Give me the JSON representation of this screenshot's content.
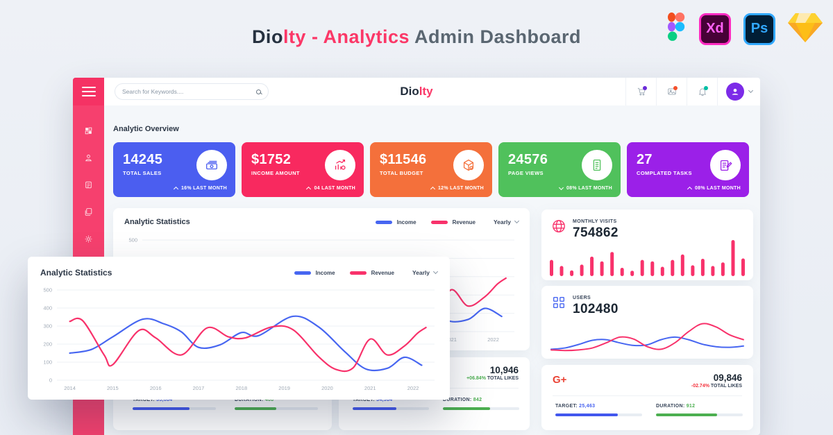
{
  "promo": {
    "title": {
      "part1": "Dio",
      "part2": "lty - ",
      "part3": "Analytics",
      "part4": " Admin Dashboard"
    },
    "tools": {
      "xd_label": "Xd",
      "ps_label": "Ps"
    }
  },
  "window": {
    "topbar": {
      "search_placeholder": "Search for Keywords....",
      "logo_part1": "Dio",
      "logo_part2": "lty"
    },
    "overview_heading": "Analytic Overview",
    "stat_cards": [
      {
        "value": "14245",
        "label": "TOTAL SALES",
        "change": "16% LAST MONTH",
        "direction": "up",
        "color": "#4b5ef0",
        "icon": "banknotes-icon"
      },
      {
        "value": "$1752",
        "label": "INCOME AMOUNT",
        "change": "04 LAST MONTH",
        "direction": "up",
        "color": "#f8295f",
        "icon": "growth-chart-icon"
      },
      {
        "value": "$11546",
        "label": "TOTAL BUDGET",
        "change": "12% LAST MONTH",
        "direction": "up",
        "color": "#f4703b",
        "icon": "package-icon"
      },
      {
        "value": "24576",
        "label": "PAGE VIEWS",
        "change": "08% LAST MONTH",
        "direction": "down",
        "color": "#50c15c",
        "icon": "report-icon"
      },
      {
        "value": "27",
        "label": "COMPLATED TASKS",
        "change": "08% LAST MONTH",
        "direction": "up",
        "color": "#9b20e8",
        "icon": "tasks-icon"
      }
    ],
    "statistics": {
      "title": "Analytic Statistics",
      "legend": [
        {
          "label": "Income",
          "color": "#4766f1"
        },
        {
          "label": "Revenue",
          "color": "#f8326b"
        }
      ],
      "range": "Yearly"
    },
    "right_panel": {
      "monthly_visits": {
        "label": "MONTHLY VISITS",
        "value": "754862"
      },
      "users": {
        "label": "USERS",
        "value": "102480"
      },
      "gplus": {
        "icon_text": "G+",
        "value": "09,846",
        "change": "-02.74%",
        "change_suffix": " TOTAL LIKES",
        "target_label": "TARGET: ",
        "target_value": "25,463",
        "target_pct": 72,
        "duration_label": "DURATION: ",
        "duration_value": "912",
        "duration_pct": 70
      }
    },
    "bottom_cards": [
      {
        "target_label": "TARGET: ",
        "target_value": "35,684",
        "target_pct": 68,
        "duration_label": "DURATION: ",
        "duration_value": "468",
        "duration_pct": 50
      },
      {
        "value": "10,946",
        "change": "+06.84%",
        "change_suffix": " TOTAL LIKES",
        "target_label": "TARGET: ",
        "target_value": "34,984",
        "target_pct": 57,
        "duration_label": "DURATION: ",
        "duration_value": "842",
        "duration_pct": 62
      }
    ]
  },
  "overlay": {
    "title": "Analytic Statistics",
    "range": "Yearly"
  },
  "chart_data": [
    {
      "id": "analytic-statistics",
      "type": "line",
      "title": "Analytic Statistics",
      "xlim": [
        2013.7,
        2022.5
      ],
      "ylim": [
        0,
        500
      ],
      "x_ticks": [
        2014,
        2015,
        2016,
        2017,
        2018,
        2019,
        2020,
        2021,
        2022
      ],
      "y_ticks": [
        0,
        100,
        200,
        300,
        400,
        500
      ],
      "grid": true,
      "legend_position": "top-right",
      "series": [
        {
          "name": "Income",
          "color": "#4766f1",
          "points": [
            [
              2014,
              150
            ],
            [
              2014.5,
              170
            ],
            [
              2015,
              240
            ],
            [
              2015.7,
              338
            ],
            [
              2016.2,
              312
            ],
            [
              2016.6,
              268
            ],
            [
              2017,
              182
            ],
            [
              2017.5,
              196
            ],
            [
              2018,
              264
            ],
            [
              2018.4,
              247
            ],
            [
              2019.2,
              354
            ],
            [
              2019.8,
              295
            ],
            [
              2020.4,
              160
            ],
            [
              2020.9,
              62
            ],
            [
              2021.4,
              66
            ],
            [
              2021.8,
              127
            ],
            [
              2022.2,
              83
            ]
          ]
        },
        {
          "name": "Revenue",
          "color": "#f8326b",
          "points": [
            [
              2014,
              326
            ],
            [
              2014.3,
              330
            ],
            [
              2014.8,
              140
            ],
            [
              2015,
              86
            ],
            [
              2015.6,
              274
            ],
            [
              2016,
              235
            ],
            [
              2016.6,
              140
            ],
            [
              2017.2,
              290
            ],
            [
              2017.7,
              240
            ],
            [
              2018.1,
              235
            ],
            [
              2018.7,
              295
            ],
            [
              2019.2,
              280
            ],
            [
              2019.8,
              130
            ],
            [
              2020.2,
              60
            ],
            [
              2020.6,
              68
            ],
            [
              2021,
              228
            ],
            [
              2021.4,
              140
            ],
            [
              2021.8,
              190
            ],
            [
              2022.1,
              260
            ],
            [
              2022.3,
              292
            ]
          ]
        }
      ]
    },
    {
      "id": "monthly-visits",
      "type": "bar",
      "color": "#f8326b",
      "values": [
        45,
        28,
        16,
        32,
        54,
        41,
        67,
        23,
        15,
        45,
        41,
        26,
        45,
        60,
        30,
        48,
        28,
        38,
        100,
        49
      ]
    },
    {
      "id": "users-activity",
      "type": "spark",
      "max": 100,
      "series": [
        {
          "name": "users-blue",
          "color": "#4766f1",
          "values": [
            10,
            14,
            25,
            38,
            40,
            30,
            22,
            24,
            40,
            48,
            40,
            26,
            18,
            16,
            20
          ]
        },
        {
          "name": "users-pink",
          "color": "#f8326b",
          "values": [
            8,
            6,
            8,
            14,
            30,
            48,
            42,
            18,
            10,
            30,
            65,
            90,
            80,
            55,
            40
          ]
        }
      ]
    }
  ]
}
